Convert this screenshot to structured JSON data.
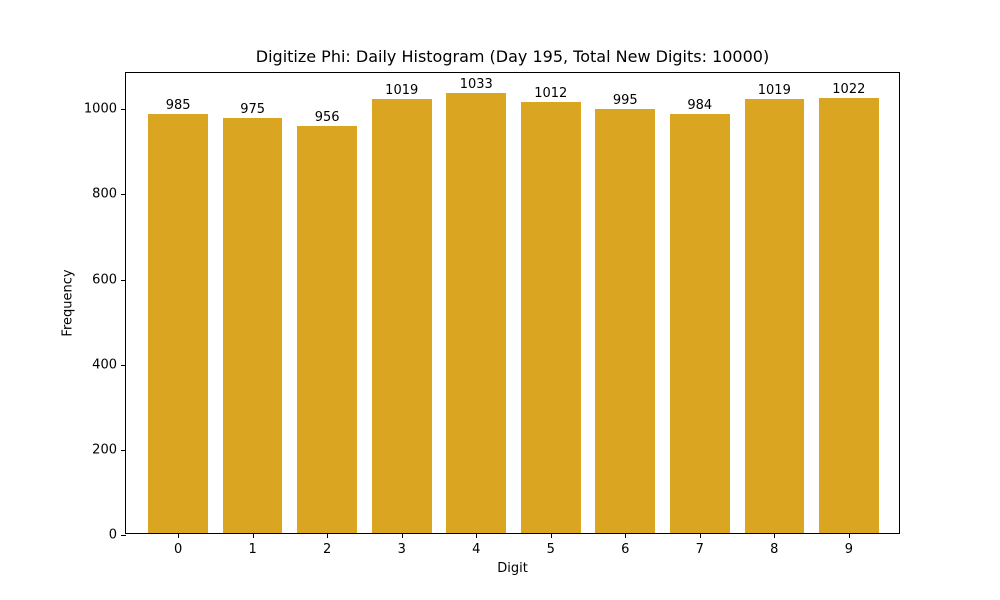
{
  "chart_data": {
    "type": "bar",
    "title": "Digitize Phi: Daily Histogram (Day 195, Total New Digits: 10000)",
    "xlabel": "Digit",
    "ylabel": "Frequency",
    "categories": [
      "0",
      "1",
      "2",
      "3",
      "4",
      "5",
      "6",
      "7",
      "8",
      "9"
    ],
    "values": [
      985,
      975,
      956,
      1019,
      1033,
      1012,
      995,
      984,
      1019,
      1022
    ],
    "bar_labels": [
      "985",
      "975",
      "956",
      "1019",
      "1033",
      "1012",
      "995",
      "984",
      "1019",
      "1022"
    ],
    "yticks": [
      0,
      200,
      400,
      600,
      800,
      1000
    ],
    "ylim": [
      0,
      1085
    ],
    "grid": false,
    "legend": null,
    "bar_color": "#DAA520"
  }
}
